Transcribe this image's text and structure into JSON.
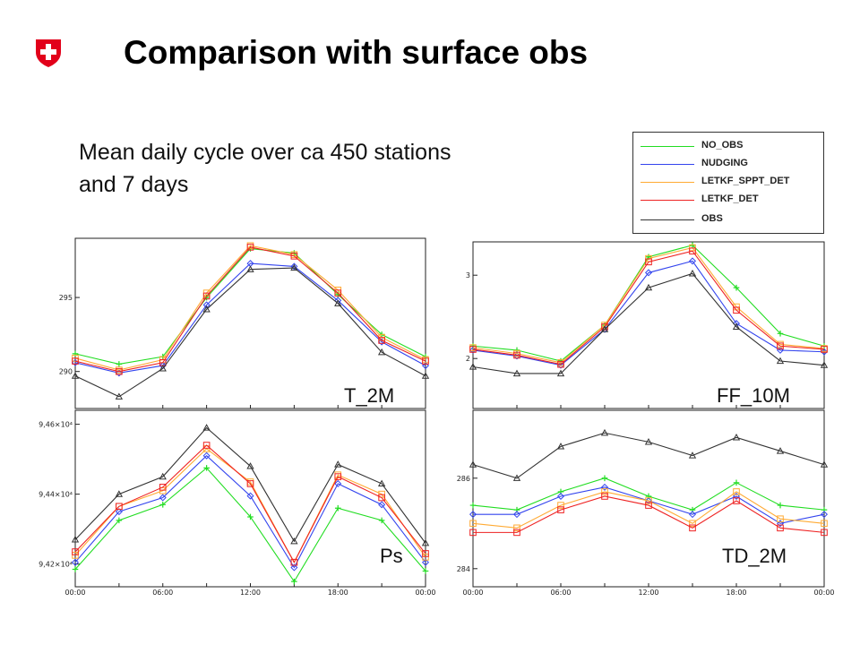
{
  "header": {
    "title": "Comparison with surface obs",
    "subtitle_line1": "Mean daily cycle over ca 450 stations",
    "subtitle_line2": "and 7 days"
  },
  "colors": {
    "NO_OBS": "#22dd22",
    "NUDGING": "#3344ee",
    "LETKF_SPPT_DET": "#ffaa33",
    "LETKF_DET": "#ee2222",
    "OBS": "#333333",
    "shield": "#e2001a"
  },
  "legend": [
    {
      "name": "NO_OBS",
      "color": "#22dd22"
    },
    {
      "name": "NUDGING",
      "color": "#3344ee"
    },
    {
      "name": "LETKF_SPPT_DET",
      "color": "#ffaa33"
    },
    {
      "name": "LETKF_DET",
      "color": "#ee2222"
    },
    {
      "name": "OBS",
      "color": "#333333"
    }
  ],
  "chart_data": [
    {
      "type": "line",
      "title": "T_2M",
      "x": [
        0,
        3,
        6,
        9,
        12,
        15,
        18,
        21,
        24
      ],
      "ylim": [
        287.5,
        299.0
      ],
      "yticks": [
        {
          "value": 290,
          "label": "290"
        },
        {
          "value": 295,
          "label": "295"
        }
      ],
      "xticks": [],
      "series": [
        {
          "name": "NO_OBS",
          "values": [
            291.2,
            290.5,
            291.0,
            295.0,
            298.3,
            298.0,
            295.2,
            292.5,
            291.0
          ]
        },
        {
          "name": "NUDGING",
          "values": [
            290.6,
            289.9,
            290.4,
            294.5,
            297.3,
            297.1,
            294.8,
            292.0,
            290.4
          ]
        },
        {
          "name": "LETKF_SPPT_DET",
          "values": [
            290.9,
            290.1,
            290.8,
            295.3,
            298.5,
            297.9,
            295.5,
            292.3,
            290.8
          ]
        },
        {
          "name": "LETKF_DET",
          "values": [
            290.7,
            290.0,
            290.6,
            295.1,
            298.4,
            297.8,
            295.3,
            292.1,
            290.7
          ]
        },
        {
          "name": "OBS",
          "values": [
            289.7,
            288.3,
            290.2,
            294.2,
            296.9,
            297.0,
            294.6,
            291.3,
            289.7
          ]
        }
      ]
    },
    {
      "type": "line",
      "title": "FF_10M",
      "x": [
        0,
        3,
        6,
        9,
        12,
        15,
        18,
        21,
        24
      ],
      "ylim": [
        1.4,
        3.4
      ],
      "yticks": [
        {
          "value": 2,
          "label": "2"
        },
        {
          "value": 3,
          "label": "3"
        }
      ],
      "xticks": [],
      "series": [
        {
          "name": "NO_OBS",
          "values": [
            2.15,
            2.1,
            1.97,
            2.4,
            3.22,
            3.36,
            2.85,
            2.3,
            2.15
          ]
        },
        {
          "name": "NUDGING",
          "values": [
            2.1,
            2.03,
            1.92,
            2.35,
            3.03,
            3.17,
            2.42,
            2.1,
            2.08
          ]
        },
        {
          "name": "LETKF_SPPT_DET",
          "values": [
            2.13,
            2.06,
            1.95,
            2.4,
            3.2,
            3.33,
            2.62,
            2.17,
            2.12
          ]
        },
        {
          "name": "LETKF_DET",
          "values": [
            2.11,
            2.04,
            1.93,
            2.38,
            3.16,
            3.29,
            2.58,
            2.15,
            2.11
          ]
        },
        {
          "name": "OBS",
          "values": [
            1.9,
            1.82,
            1.82,
            2.35,
            2.85,
            3.02,
            2.38,
            1.97,
            1.92
          ]
        }
      ]
    },
    {
      "type": "line",
      "title": "Ps",
      "x": [
        0,
        3,
        6,
        9,
        12,
        15,
        18,
        21,
        24
      ],
      "ylim": [
        94135,
        94640
      ],
      "yticks": [
        {
          "value": 94200,
          "label": "9,42×10⁴"
        },
        {
          "value": 94400,
          "label": "9,44×10⁴"
        },
        {
          "value": 94600,
          "label": "9,46×10⁴"
        }
      ],
      "xticks": [
        "00:00",
        "06:00",
        "12:00",
        "18:00",
        "00:00"
      ],
      "series": [
        {
          "name": "NO_OBS",
          "values": [
            94185,
            94325,
            94370,
            94475,
            94335,
            94150,
            94360,
            94325,
            94180
          ]
        },
        {
          "name": "NUDGING",
          "values": [
            94205,
            94350,
            94390,
            94510,
            94395,
            94190,
            94430,
            94370,
            94205
          ]
        },
        {
          "name": "LETKF_SPPT_DET",
          "values": [
            94225,
            94365,
            94410,
            94530,
            94435,
            94205,
            94455,
            94400,
            94220
          ]
        },
        {
          "name": "LETKF_DET",
          "values": [
            94235,
            94365,
            94420,
            94540,
            94430,
            94205,
            94450,
            94390,
            94230
          ]
        },
        {
          "name": "OBS",
          "values": [
            94270,
            94400,
            94450,
            94590,
            94480,
            94265,
            94485,
            94430,
            94260
          ]
        }
      ]
    },
    {
      "type": "line",
      "title": "TD_2M",
      "x": [
        0,
        3,
        6,
        9,
        12,
        15,
        18,
        21,
        24
      ],
      "ylim": [
        283.6,
        287.5
      ],
      "yticks": [
        {
          "value": 284,
          "label": "284"
        },
        {
          "value": 286,
          "label": "286"
        }
      ],
      "xticks": [
        "00:00",
        "06:00",
        "12:00",
        "18:00",
        "00:00"
      ],
      "series": [
        {
          "name": "NO_OBS",
          "values": [
            285.4,
            285.3,
            285.7,
            286.0,
            285.6,
            285.3,
            285.9,
            285.4,
            285.3
          ]
        },
        {
          "name": "NUDGING",
          "values": [
            285.2,
            285.2,
            285.6,
            285.8,
            285.5,
            285.2,
            285.6,
            285.0,
            285.2
          ]
        },
        {
          "name": "LETKF_SPPT_DET",
          "values": [
            285.0,
            284.9,
            285.4,
            285.7,
            285.5,
            285.0,
            285.7,
            285.1,
            285.0
          ]
        },
        {
          "name": "LETKF_DET",
          "values": [
            284.8,
            284.8,
            285.3,
            285.6,
            285.4,
            284.9,
            285.5,
            284.9,
            284.8
          ]
        },
        {
          "name": "OBS",
          "values": [
            286.3,
            286.0,
            286.7,
            287.0,
            286.8,
            286.5,
            286.9,
            286.6,
            286.3
          ]
        }
      ]
    }
  ]
}
